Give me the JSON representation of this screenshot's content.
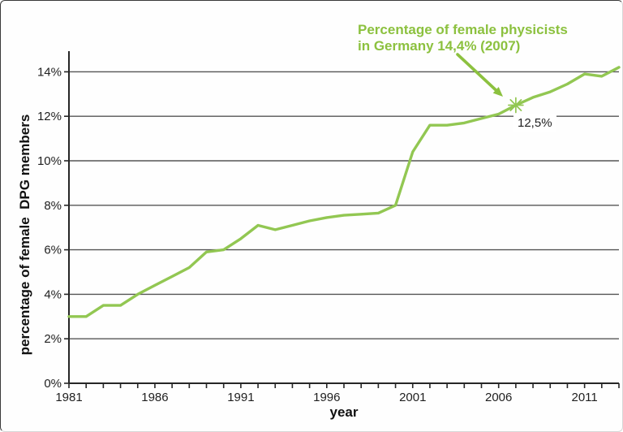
{
  "colors": {
    "series_green": "#92c752",
    "annotation_green": "#8cc13f",
    "gridline": "#555555",
    "axis": "#262626",
    "tick_text": "#1f1f1f",
    "marker_label_text": "#1f1f1f",
    "background": "#ffffff"
  },
  "chart_data": {
    "type": "line",
    "title": "",
    "xlabel": "year",
    "ylabel": "percentage of female  DPG members",
    "x": [
      1981,
      1982,
      1983,
      1984,
      1985,
      1986,
      1987,
      1988,
      1989,
      1990,
      1991,
      1992,
      1993,
      1994,
      1995,
      1996,
      1997,
      1998,
      1999,
      2000,
      2001,
      2002,
      2003,
      2004,
      2005,
      2006,
      2007,
      2008,
      2009,
      2010,
      2011,
      2012,
      2013
    ],
    "series": [
      {
        "name": "percentage of female DPG members",
        "color": "#92c752",
        "values": [
          3.0,
          3.0,
          3.5,
          3.5,
          4.0,
          4.4,
          4.8,
          5.2,
          5.9,
          6.0,
          6.5,
          7.1,
          6.9,
          7.1,
          7.3,
          7.45,
          7.55,
          7.6,
          7.65,
          8.0,
          10.4,
          11.6,
          11.6,
          11.7,
          11.9,
          12.1,
          12.5,
          12.85,
          13.1,
          13.45,
          13.9,
          13.8,
          14.2
        ]
      }
    ],
    "xlim": [
      1981,
      2013
    ],
    "ylim": [
      0,
      14.9
    ],
    "grid": "horizontal",
    "legend": "none",
    "x_tick_labels": [
      "1981",
      "1986",
      "1991",
      "1996",
      "2001",
      "2006",
      "2011"
    ],
    "x_minor_ticks_every_year": true,
    "y_tick_values": [
      0,
      2,
      4,
      6,
      8,
      10,
      12,
      14
    ],
    "y_tick_labels": [
      "0%",
      "2%",
      "4%",
      "6%",
      "8%",
      "10%",
      "12%",
      "14%"
    ],
    "annotation": {
      "line1": "Percentage of female physicists",
      "line2": "in Germany 14,4% (2007)",
      "arrow": true,
      "marker_shape": "asterisk",
      "marker_year": 2007,
      "marker_value": 12.5,
      "marker_label": "12,5%"
    }
  }
}
